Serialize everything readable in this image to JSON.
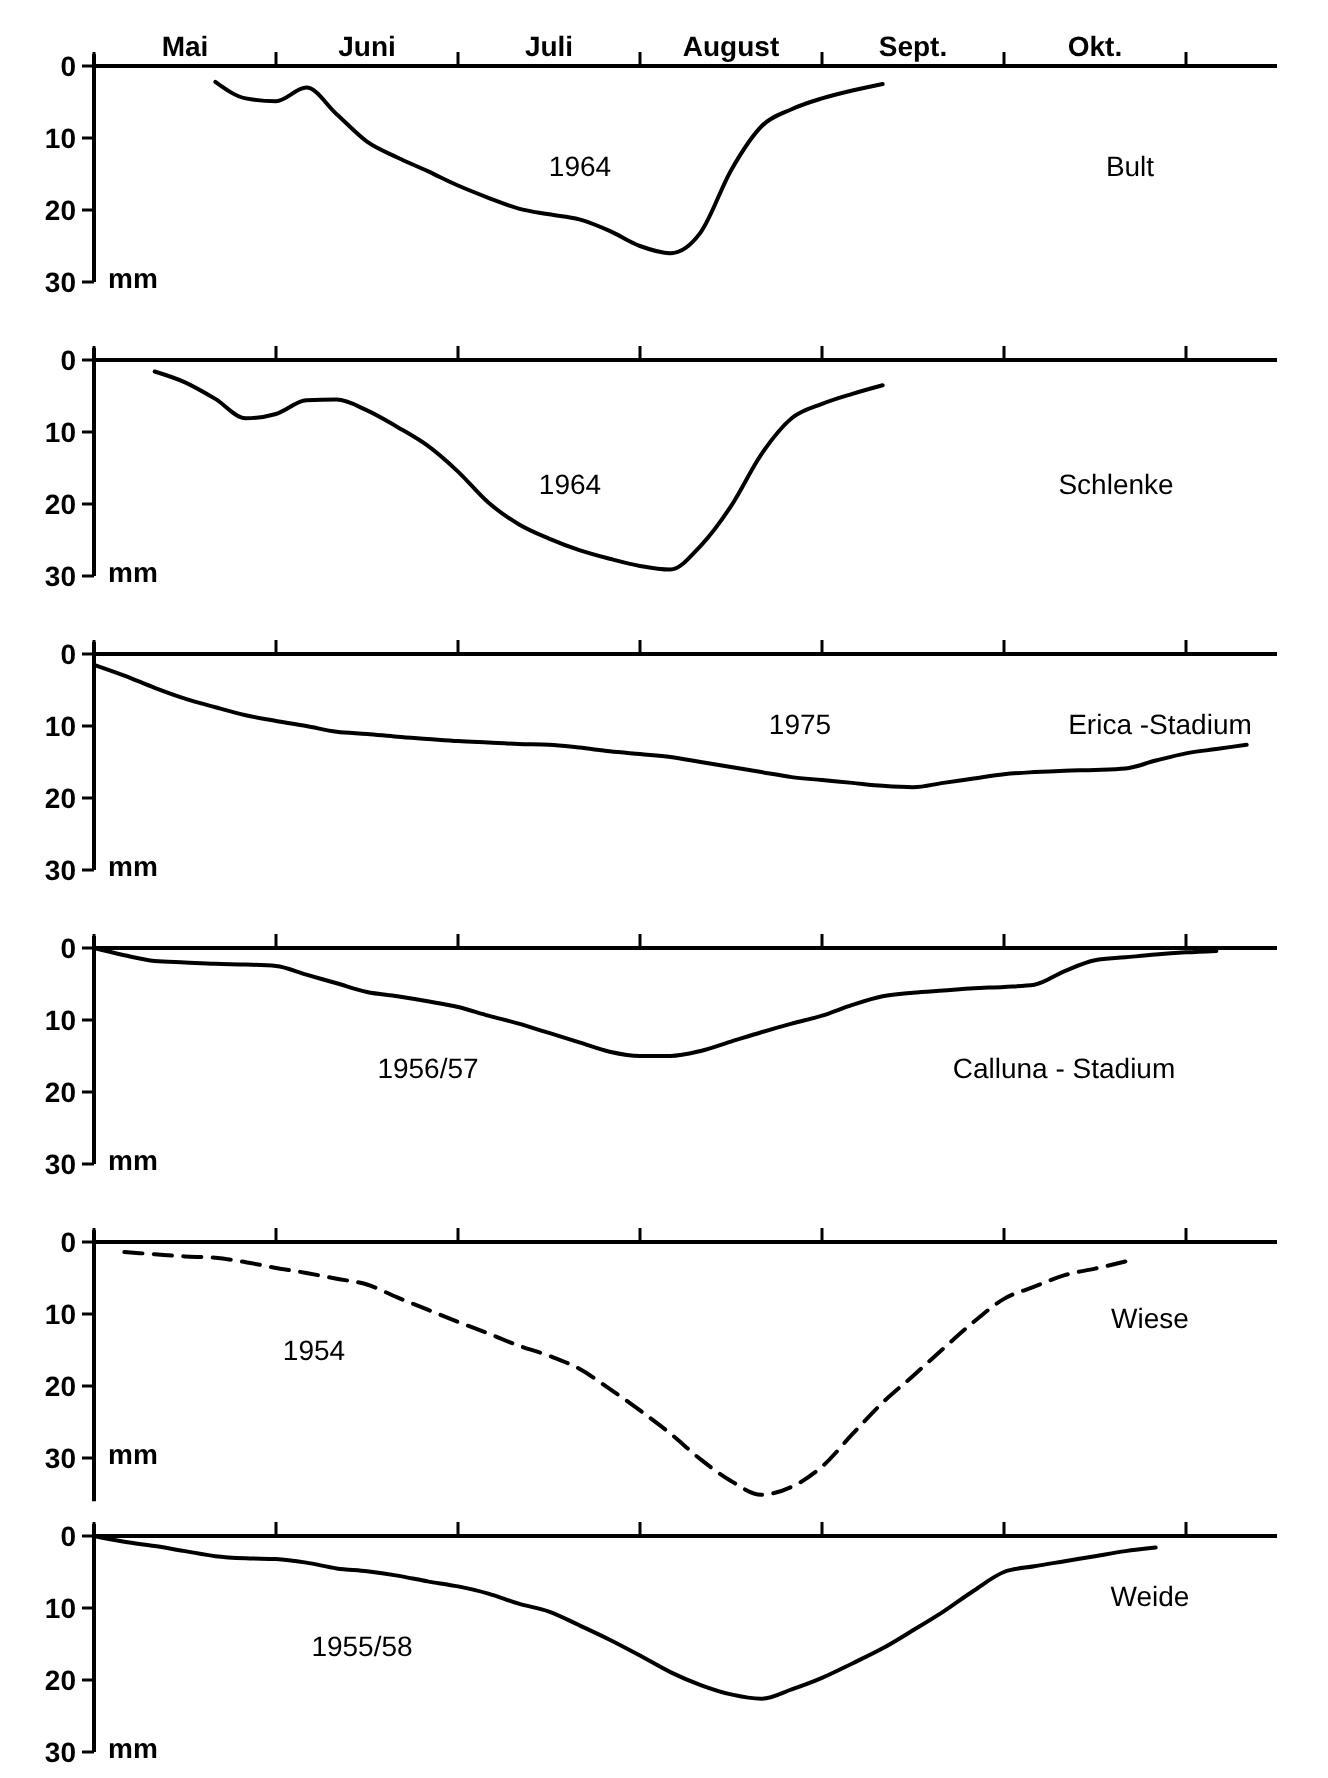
{
  "chart_data": [
    {
      "type": "line",
      "ylabel": "mm",
      "ylim": [
        30,
        0
      ],
      "yticks": [
        0,
        10,
        20,
        30
      ],
      "categories": [
        null,
        null,
        null,
        "Mai",
        null,
        null,
        null,
        null,
        null,
        "Juni",
        null,
        null,
        null,
        null,
        null,
        "Juli",
        null,
        null,
        null,
        null,
        null,
        "August",
        null,
        null,
        null,
        null,
        null,
        "Sept.",
        null,
        null,
        null,
        null,
        null,
        "Okt.",
        null,
        null,
        null,
        null,
        null,
        null
      ],
      "line_style": "solid",
      "marker": "none",
      "series": [
        {
          "color": "#000000",
          "values": [
            null,
            null,
            null,
            null,
            2.2,
            4.5,
            4.9,
            3.0,
            6.7,
            10.5,
            12.7,
            14.6,
            16.6,
            18.3,
            19.8,
            20.6,
            21.3,
            22.9,
            25,
            26,
            23.1,
            14.5,
            8.4,
            6,
            4.5,
            3.4,
            2.5,
            null,
            null,
            null,
            null,
            null,
            null,
            null,
            null,
            null,
            null,
            null,
            null,
            null
          ]
        }
      ],
      "annotations": [
        "1964",
        "Bult"
      ]
    },
    {
      "type": "line",
      "ylabel": "mm",
      "ylim": [
        30,
        0
      ],
      "yticks": [
        0,
        10,
        20,
        30
      ],
      "tick_labels": "y",
      "categories": [
        null,
        null,
        null,
        null,
        null,
        null,
        null,
        null,
        null,
        null,
        null,
        null,
        null,
        null,
        null,
        null,
        null,
        null,
        null,
        null,
        null,
        null,
        null,
        null,
        null,
        null,
        null,
        null,
        null,
        null,
        null,
        null,
        null,
        null,
        null,
        null,
        null,
        null,
        null,
        null
      ],
      "line_style": "solid",
      "marker": "none",
      "series": [
        {
          "color": "#000000",
          "values": [
            null,
            null,
            1.6,
            3.1,
            5.4,
            8.1,
            7.5,
            5.6,
            5.5,
            7.0,
            9.3,
            11.9,
            15.5,
            19.8,
            22.8,
            24.8,
            26.4,
            27.6,
            28.6,
            29.1,
            25.8,
            20.3,
            13.1,
            8.1,
            6.1,
            4.7,
            3.5,
            null,
            null,
            null,
            null,
            null,
            null,
            null,
            null,
            null,
            null,
            null,
            null,
            null
          ]
        }
      ],
      "annotations": [
        "1964",
        "Schlenke"
      ]
    },
    {
      "type": "line",
      "ylabel": "mm",
      "ylim": [
        30,
        0
      ],
      "yticks": [
        0,
        10,
        20,
        30
      ],
      "tick_labels": "y",
      "categories": [
        null,
        null,
        null,
        null,
        null,
        null,
        null,
        null,
        null,
        null,
        null,
        null,
        null,
        null,
        null,
        null,
        null,
        null,
        null,
        null,
        null,
        null,
        null,
        null,
        null,
        null,
        null,
        null,
        null,
        null,
        null,
        null,
        null,
        null,
        null,
        null,
        null,
        null,
        null,
        null
      ],
      "line_style": "solid",
      "marker": "none",
      "series": [
        {
          "color": "#000000",
          "values": [
            1.5,
            3.0,
            4.7,
            6.2,
            7.4,
            8.5,
            9.3,
            10.0,
            10.8,
            11.1,
            11.5,
            11.8,
            12.1,
            12.3,
            12.5,
            12.6,
            13.0,
            13.5,
            13.9,
            14.3,
            15.0,
            15.7,
            16.4,
            17.1,
            17.5,
            17.9,
            18.3,
            18.5,
            17.9,
            17.3,
            16.7,
            16.4,
            16.2,
            16.1,
            15.9,
            14.8,
            13.8,
            13.2,
            12.6,
            null
          ]
        }
      ],
      "annotations": [
        "1975",
        "Erica -Stadium"
      ]
    },
    {
      "type": "line",
      "ylabel": "mm",
      "ylim": [
        30,
        0
      ],
      "yticks": [
        0,
        10,
        20,
        30
      ],
      "tick_labels": "y",
      "categories": [
        null,
        null,
        null,
        null,
        null,
        null,
        null,
        null,
        null,
        null,
        null,
        null,
        null,
        null,
        null,
        null,
        null,
        null,
        null,
        null,
        null,
        null,
        null,
        null,
        null,
        null,
        null,
        null,
        null,
        null,
        null,
        null,
        null,
        null,
        null,
        null,
        null,
        null,
        null,
        null
      ],
      "line_style": "solid",
      "marker": "none",
      "series": [
        {
          "color": "#000000",
          "values": [
            0,
            1.0,
            1.8,
            2.0,
            2.2,
            2.3,
            2.5,
            3.7,
            4.9,
            6.1,
            6.7,
            7.4,
            8.2,
            9.4,
            10.5,
            11.8,
            13.1,
            14.4,
            15.0,
            15.0,
            14.3,
            13.0,
            11.7,
            10.5,
            9.4,
            7.9,
            6.7,
            6.2,
            5.9,
            5.6,
            5.4,
            5.1,
            3.2,
            1.7,
            1.3,
            0.9,
            0.6,
            0.4,
            null,
            null
          ]
        }
      ],
      "annotations": [
        "1956/57",
        "Calluna - Stadium"
      ]
    },
    {
      "type": "line",
      "ylabel": "mm",
      "ylim": [
        36,
        0
      ],
      "yticks": [
        0,
        10,
        20,
        30
      ],
      "tick_labels": "y",
      "categories": [
        null,
        null,
        null,
        null,
        null,
        null,
        null,
        null,
        null,
        null,
        null,
        null,
        null,
        null,
        null,
        null,
        null,
        null,
        null,
        null,
        null,
        null,
        null,
        null,
        null,
        null,
        null,
        null,
        null,
        null,
        null,
        null,
        null,
        null,
        null,
        null,
        null,
        null,
        null,
        null
      ],
      "line_style": "dashed",
      "marker": "none",
      "series": [
        {
          "color": "#000000",
          "values": [
            null,
            1.4,
            1.7,
            2.0,
            2.2,
            2.8,
            3.6,
            4.3,
            5.1,
            5.9,
            7.7,
            9.4,
            11.1,
            12.7,
            14.4,
            15.8,
            17.6,
            20.4,
            23.4,
            26.6,
            30.2,
            33.2,
            35.1,
            34.0,
            31.2,
            26.7,
            22.3,
            18.6,
            14.8,
            11.1,
            7.9,
            6.2,
            4.6,
            3.7,
            2.7,
            null,
            null,
            null,
            null,
            null
          ]
        }
      ],
      "annotations": [
        "1954",
        "Wiese"
      ]
    },
    {
      "type": "line",
      "ylabel": "mm",
      "ylim": [
        30,
        0
      ],
      "yticks": [
        0,
        10,
        20,
        30
      ],
      "tick_labels": "y",
      "categories": [
        null,
        null,
        null,
        null,
        null,
        null,
        null,
        null,
        null,
        null,
        null,
        null,
        null,
        null,
        null,
        null,
        null,
        null,
        null,
        null,
        null,
        null,
        null,
        null,
        null,
        null,
        null,
        null,
        null,
        null,
        null,
        null,
        null,
        null,
        null,
        null,
        null,
        null,
        null,
        null
      ],
      "line_style": "solid",
      "marker": "none",
      "series": [
        {
          "color": "#000000",
          "values": [
            0,
            0.8,
            1.4,
            2.1,
            2.8,
            3.1,
            3.2,
            3.7,
            4.5,
            4.9,
            5.5,
            6.3,
            7.0,
            8.0,
            9.4,
            10.5,
            12.4,
            14.4,
            16.6,
            18.9,
            20.7,
            22.0,
            22.6,
            21.3,
            19.7,
            17.7,
            15.6,
            13.1,
            10.5,
            7.6,
            5.0,
            4.2,
            3.5,
            2.8,
            2.1,
            1.6,
            null,
            null,
            null,
            null
          ]
        }
      ],
      "annotations": [
        "1955/58",
        "Weide"
      ]
    }
  ]
}
